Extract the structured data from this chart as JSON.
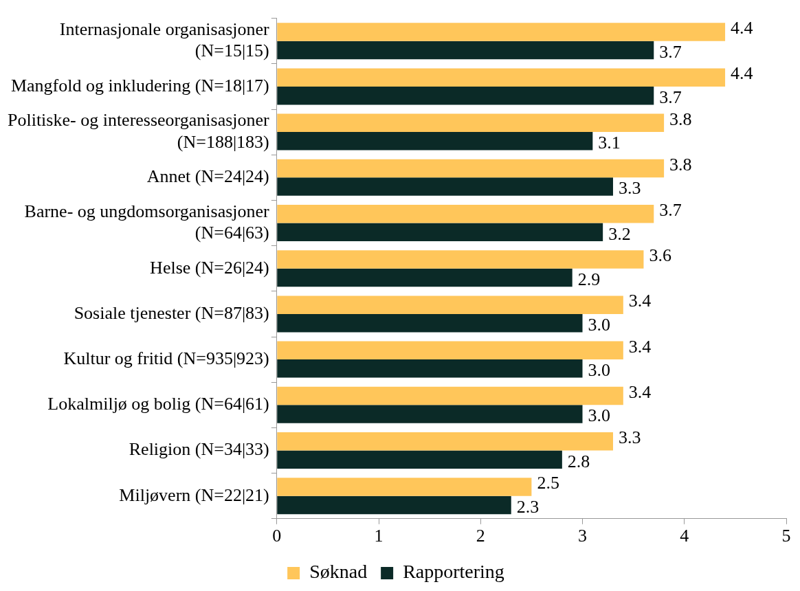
{
  "chart_data": {
    "type": "bar",
    "orientation": "horizontal",
    "categories": [
      "Internasjonale organisasjoner (N=15|15)",
      "Mangfold og inkludering (N=18|17)",
      "Politiske- og interesseorganisasjoner (N=188|183)",
      "Annet (N=24|24)",
      "Barne- og ungdomsorganisasjoner (N=64|63)",
      "Helse (N=26|24)",
      "Sosiale tjenester (N=87|83)",
      "Kultur og fritid (N=935|923)",
      "Lokalmiljø og bolig (N=64|61)",
      "Religion (N=34|33)",
      "Miljøvern (N=22|21)"
    ],
    "series": [
      {
        "name": "Søknad",
        "color": "#ffc65a",
        "values": [
          4.4,
          4.4,
          3.8,
          3.8,
          3.7,
          3.6,
          3.4,
          3.4,
          3.4,
          3.3,
          2.5
        ],
        "value_labels": [
          "4.4",
          "4.4",
          "3.8",
          "3.8",
          "3.7",
          "3.6",
          "3.4",
          "3.4",
          "3.4",
          "3.3",
          "2.5"
        ]
      },
      {
        "name": "Rapportering",
        "color": "#0b2a27",
        "values": [
          3.7,
          3.7,
          3.1,
          3.3,
          3.2,
          2.9,
          3.0,
          3.0,
          3.0,
          2.8,
          2.3
        ],
        "value_labels": [
          "3.7",
          "3.7",
          "3.1",
          "3.3",
          "3.2",
          "2.9",
          "3.0",
          "3.0",
          "3.0",
          "2.8",
          "2.3"
        ]
      }
    ],
    "xlim": [
      0,
      5
    ],
    "xticks": [
      0,
      1,
      2,
      3,
      4,
      5
    ],
    "grid": false,
    "legend": "bottom"
  }
}
